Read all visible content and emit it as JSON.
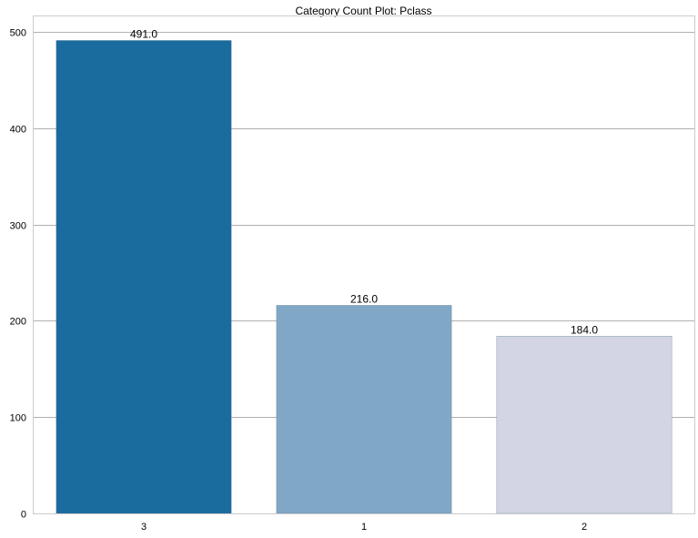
{
  "chart_data": {
    "type": "bar",
    "title": "Category Count Plot: Pclass",
    "xlabel": "",
    "ylabel": "",
    "categories": [
      "3",
      "1",
      "2"
    ],
    "values": [
      491,
      216,
      184
    ],
    "data_labels": [
      "491.0",
      "216.0",
      "184.0"
    ],
    "colors": [
      "#1a6b9e",
      "#80a7c5",
      "#d3d5e4"
    ],
    "ylim": [
      0,
      516
    ],
    "yticks": [
      0,
      100,
      200,
      300,
      400,
      500
    ],
    "grid": true,
    "legend": "none"
  }
}
